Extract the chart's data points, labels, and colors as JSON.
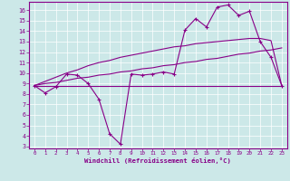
{
  "xlabel": "Windchill (Refroidissement éolien,°C)",
  "bg_color": "#cce8e8",
  "line_color": "#880088",
  "grid_color": "#ffffff",
  "x_ticks": [
    0,
    1,
    2,
    3,
    4,
    5,
    6,
    7,
    8,
    9,
    10,
    11,
    12,
    13,
    14,
    15,
    16,
    17,
    18,
    19,
    20,
    21,
    22,
    23
  ],
  "y_ticks": [
    3,
    4,
    5,
    6,
    7,
    8,
    9,
    10,
    11,
    12,
    13,
    14,
    15,
    16
  ],
  "ylim": [
    2.8,
    16.8
  ],
  "xlim": [
    -0.5,
    23.5
  ],
  "series1_x": [
    0,
    1,
    2,
    3,
    4,
    5,
    6,
    7,
    8,
    9,
    10,
    11,
    12,
    13,
    14,
    15,
    16,
    17,
    18,
    19,
    20,
    21,
    22,
    23
  ],
  "series1_y": [
    8.8,
    8.1,
    8.7,
    9.9,
    9.8,
    9.0,
    7.5,
    4.2,
    3.2,
    9.9,
    9.8,
    9.9,
    10.1,
    9.9,
    14.1,
    15.2,
    14.4,
    16.3,
    16.5,
    15.5,
    15.9,
    13.0,
    11.5,
    8.8
  ],
  "series2_x": [
    0,
    23
  ],
  "series2_y": [
    8.8,
    8.8
  ],
  "series3_x": [
    0,
    1,
    2,
    3,
    4,
    5,
    6,
    7,
    8,
    9,
    10,
    11,
    12,
    13,
    14,
    15,
    16,
    17,
    18,
    19,
    20,
    21,
    22,
    23
  ],
  "series3_y": [
    8.8,
    9.0,
    9.1,
    9.3,
    9.5,
    9.6,
    9.8,
    9.9,
    10.1,
    10.2,
    10.4,
    10.5,
    10.7,
    10.8,
    11.0,
    11.1,
    11.3,
    11.4,
    11.6,
    11.8,
    11.9,
    12.1,
    12.2,
    12.4
  ],
  "series4_x": [
    0,
    1,
    2,
    3,
    4,
    5,
    6,
    7,
    8,
    9,
    10,
    11,
    12,
    13,
    14,
    15,
    16,
    17,
    18,
    19,
    20,
    21,
    22,
    23
  ],
  "series4_y": [
    8.8,
    9.2,
    9.6,
    10.0,
    10.3,
    10.7,
    11.0,
    11.2,
    11.5,
    11.7,
    11.9,
    12.1,
    12.3,
    12.5,
    12.6,
    12.8,
    12.9,
    13.0,
    13.1,
    13.2,
    13.3,
    13.3,
    13.1,
    8.8
  ]
}
